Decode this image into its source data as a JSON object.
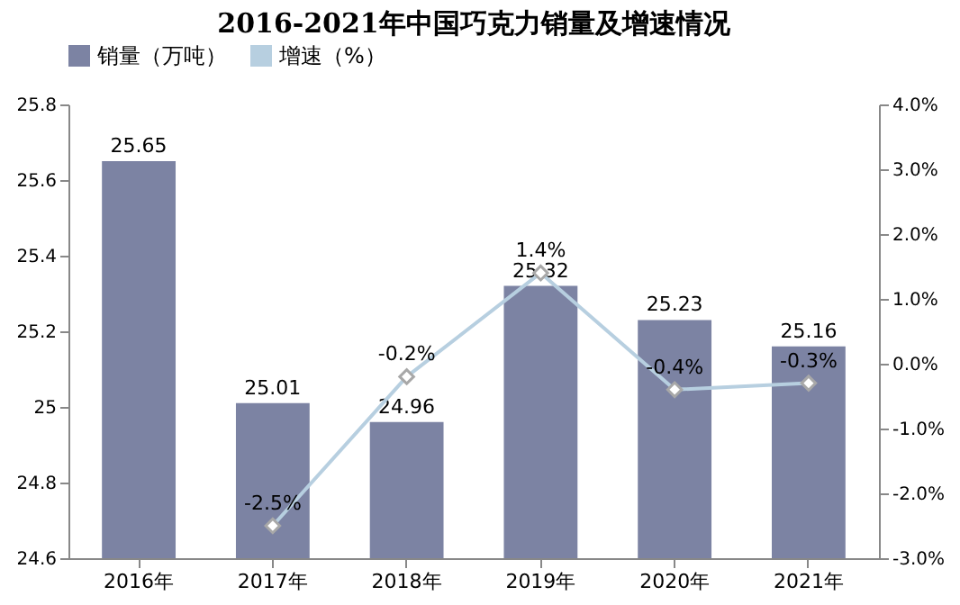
{
  "chart_data": {
    "type": "bar",
    "title": "2016-2021年中国巧克力销量及增速情况",
    "categories": [
      "2016年",
      "2017年",
      "2018年",
      "2019年",
      "2020年",
      "2021年"
    ],
    "series": [
      {
        "name": "销量（万吨）",
        "color": "#7c83a3",
        "values": [
          25.65,
          25.01,
          24.96,
          25.32,
          25.23,
          25.16
        ]
      },
      {
        "name": "增速（%）",
        "type": "line",
        "axis": "y2",
        "color": "#b7cfe0",
        "values": [
          null,
          -2.5,
          -0.2,
          1.4,
          -0.4,
          -0.3
        ],
        "value_labels": [
          null,
          "-2.5%",
          "-0.2%",
          "1.4%",
          "-0.4%",
          "-0.3%"
        ]
      }
    ],
    "ylim": [
      24.6,
      25.8
    ],
    "yticks": [
      24.6,
      24.8,
      25,
      25.2,
      25.4,
      25.6,
      25.8
    ],
    "y2lim": [
      -3,
      4
    ],
    "y2ticks": [
      {
        "value": -3,
        "label": "-3.0%"
      },
      {
        "value": -2,
        "label": "-2.0%"
      },
      {
        "value": -1,
        "label": "-1.0%"
      },
      {
        "value": 0,
        "label": "0.0%"
      },
      {
        "value": 1,
        "label": "1.0%"
      },
      {
        "value": 2,
        "label": "2.0%"
      },
      {
        "value": 3,
        "label": "3.0%"
      },
      {
        "value": 4,
        "label": "4.0%"
      }
    ],
    "data_labels": true,
    "legend": "top",
    "marker": "diamond",
    "grid": false
  }
}
